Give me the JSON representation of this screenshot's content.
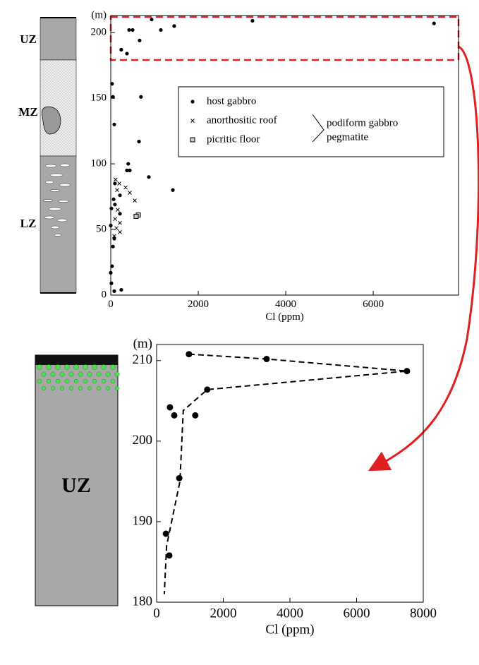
{
  "chart_data": [
    {
      "type": "scatter",
      "xlabel": "Cl (ppm)",
      "ylabel": "(m)",
      "xlim": [
        0,
        7950
      ],
      "ylim": [
        0,
        213
      ],
      "xticks": [
        0,
        2000,
        4000,
        6000
      ],
      "yticks": [
        0,
        50,
        100,
        150,
        200
      ],
      "legend": "upper right",
      "legend_group_label": [
        "podiform gabbro",
        "pegmatite"
      ],
      "zones": [
        "UZ",
        "MZ",
        "LZ"
      ],
      "series": [
        {
          "name": "host gabbro",
          "marker": "dot",
          "color": "#000000",
          "x": [
            935,
            3240,
            7390,
            420,
            500,
            1145,
            1450,
            660,
            240,
            370,
            30,
            50,
            690,
            80,
            645,
            400,
            370,
            435,
            870,
            1420,
            95,
            210,
            65,
            95,
            15,
            210,
            0,
            80,
            50,
            30,
            0,
            15,
            80,
            240
          ],
          "y": [
            210,
            209,
            207,
            202,
            202,
            202,
            205,
            194,
            187,
            184,
            161,
            151,
            151,
            130,
            117,
            100,
            95,
            95,
            90,
            80,
            85,
            76,
            73,
            69,
            66,
            62,
            53,
            43,
            37,
            22,
            17,
            9,
            3,
            4
          ]
        },
        {
          "name": "anorthositic roof",
          "marker": "x",
          "color": "#000000",
          "x": [
            110,
            195,
            340,
            435,
            550,
            145,
            160,
            100,
            210,
            130,
            210,
            80
          ],
          "y": [
            88,
            85,
            82,
            78,
            72,
            80,
            65,
            58,
            55,
            51,
            48,
            45
          ]
        },
        {
          "name": "picritic floor",
          "marker": "square",
          "color": "#000000",
          "x": [
            630,
            580
          ],
          "y": [
            61,
            60
          ]
        }
      ]
    },
    {
      "type": "scatter",
      "xlabel": "Cl (ppm)",
      "ylabel": "(m)",
      "xlim": [
        0,
        8000
      ],
      "ylim": [
        180,
        212
      ],
      "xticks": [
        0,
        2000,
        4000,
        6000,
        8000
      ],
      "yticks": [
        180,
        190,
        200,
        210
      ],
      "zones": [
        "UZ"
      ],
      "series": [
        {
          "marker": "dot",
          "color": "#000000",
          "x": [
            970,
            3300,
            7510,
            1520,
            400,
            530,
            1160,
            680,
            280,
            380
          ],
          "y": [
            210.8,
            210.2,
            208.7,
            206.4,
            204.2,
            203.2,
            203.2,
            195.4,
            188.5,
            185.8
          ]
        }
      ],
      "trend": {
        "style": "dashed",
        "color": "#000000",
        "x": [
          970,
          3300,
          7510,
          1520,
          800,
          700,
          300,
          230
        ],
        "y": [
          210.8,
          210.2,
          208.7,
          206.4,
          203.8,
          195,
          187,
          181
        ]
      }
    }
  ]
}
